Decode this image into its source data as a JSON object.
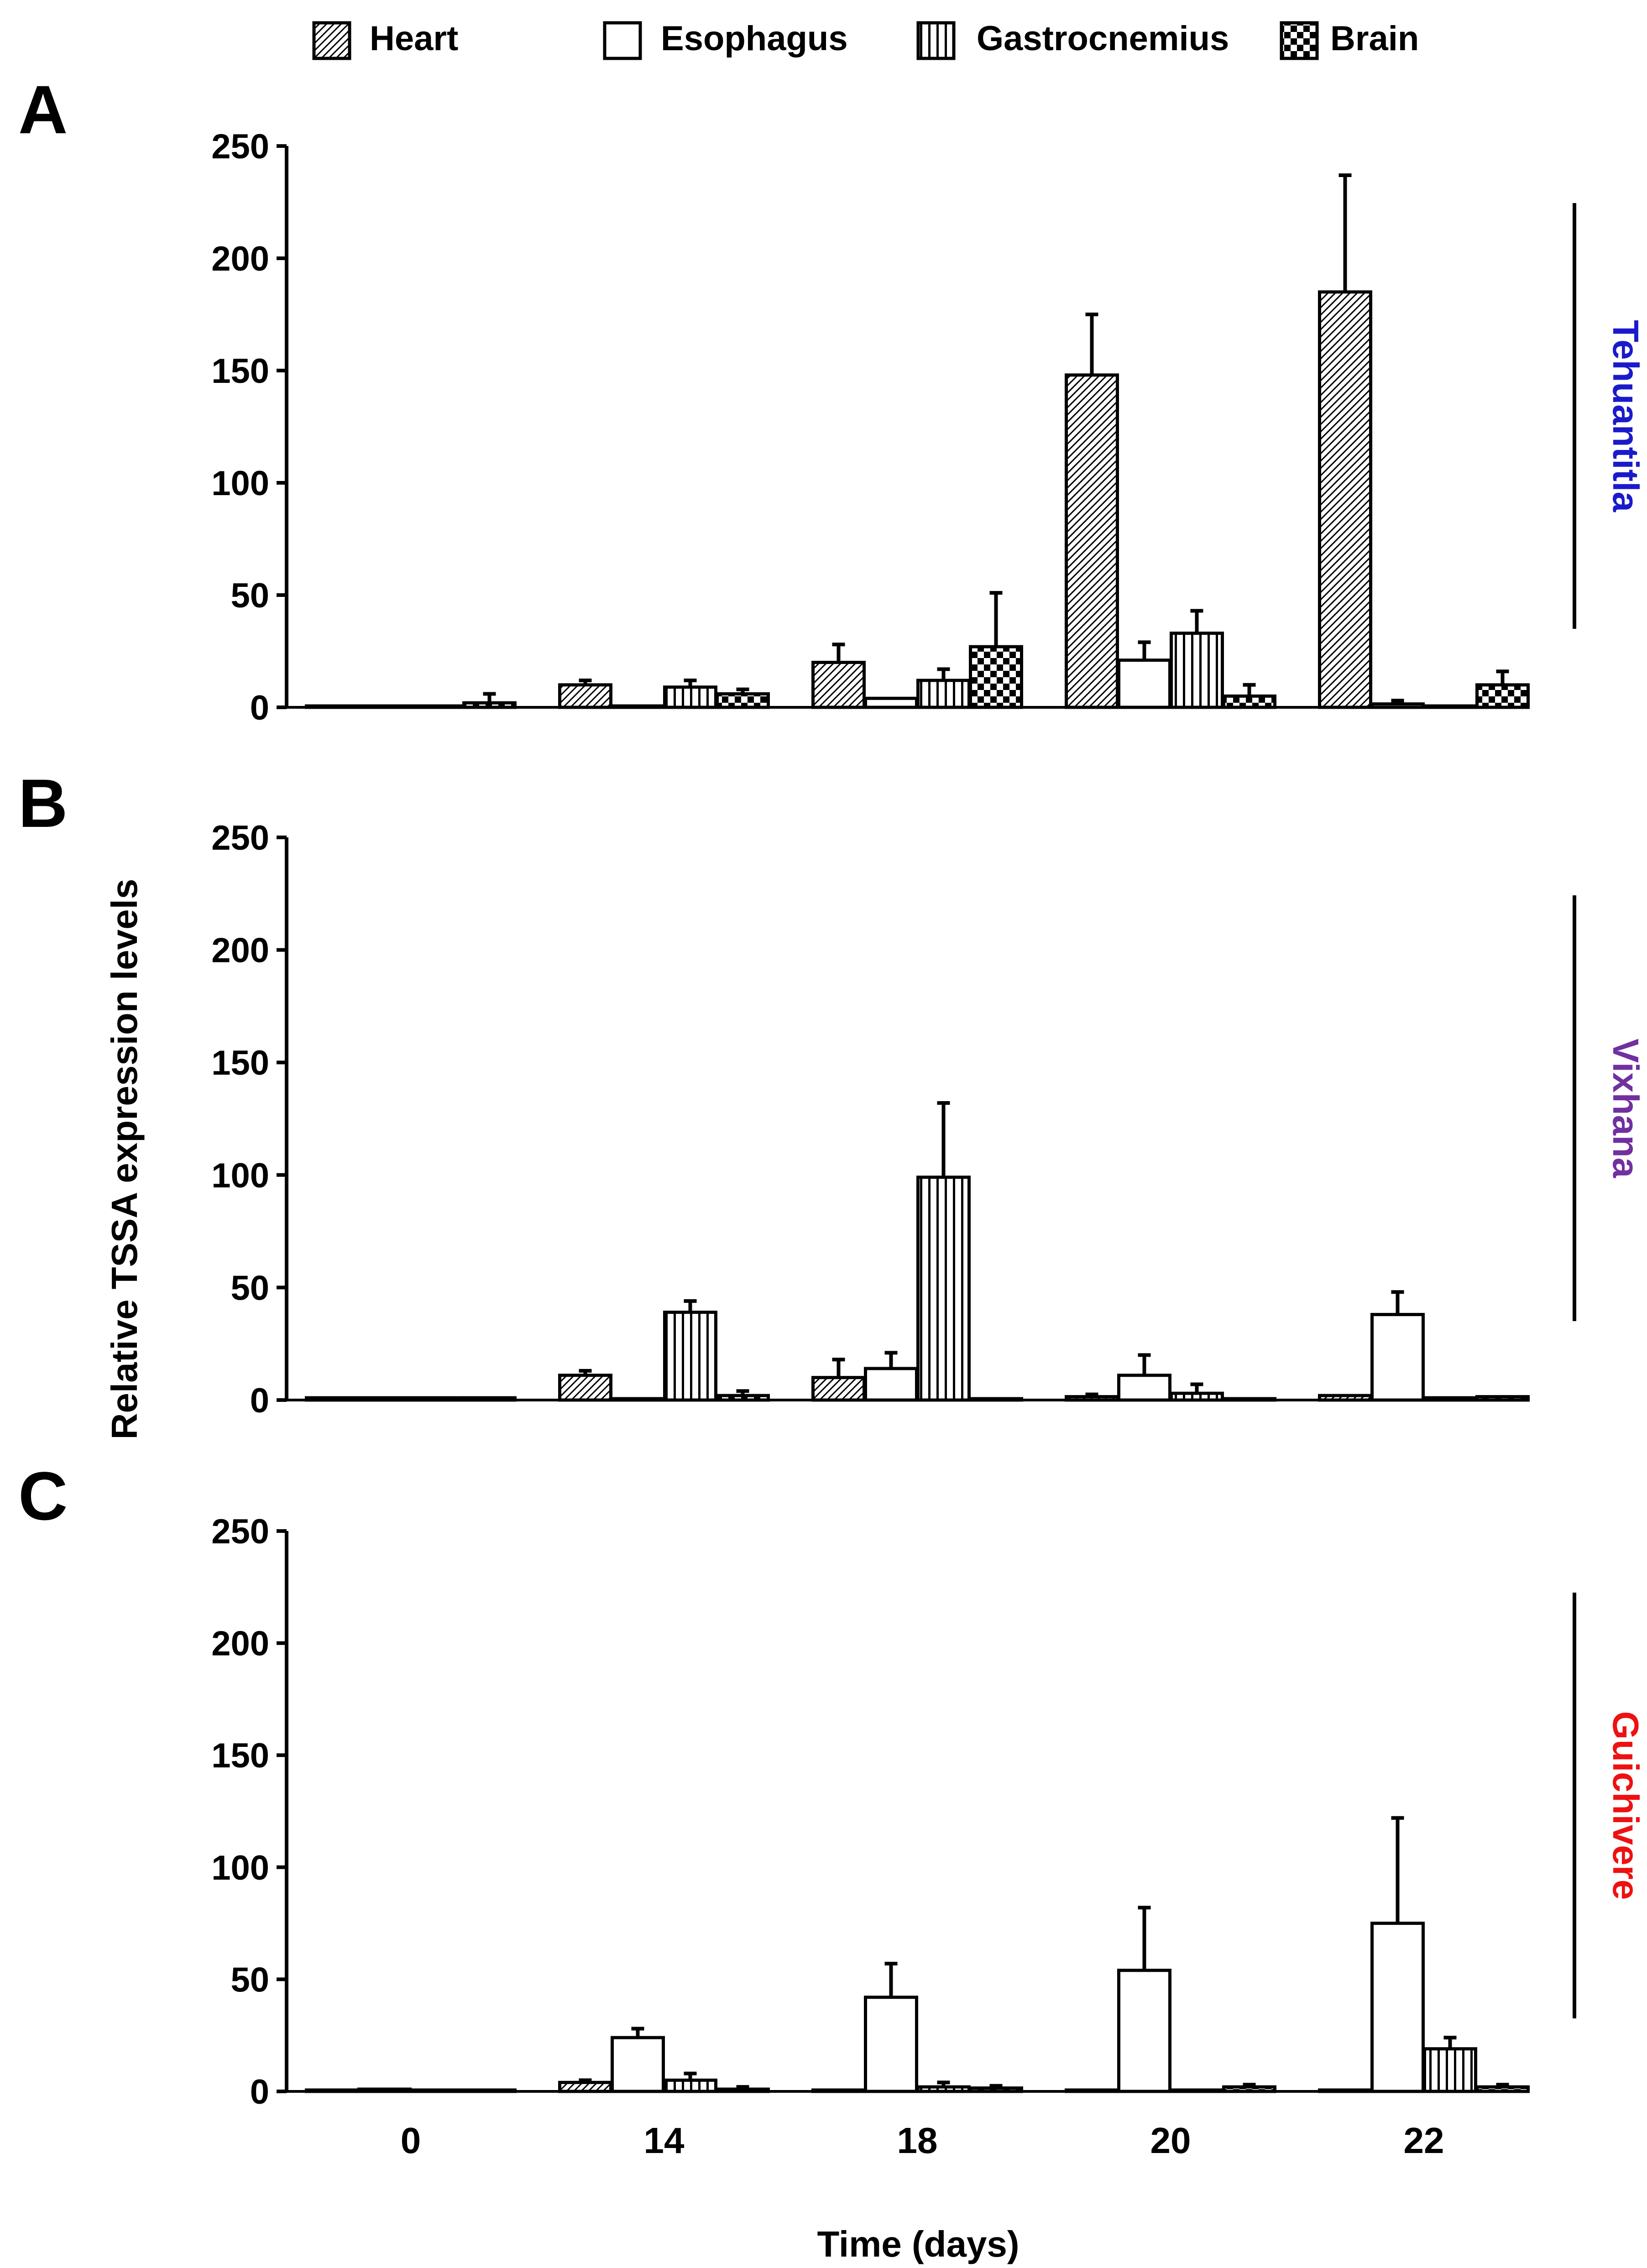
{
  "legend": [
    {
      "label": "Heart",
      "pattern": "diag"
    },
    {
      "label": "Esophagus",
      "pattern": "none"
    },
    {
      "label": "Gastrocnemius",
      "pattern": "vert"
    },
    {
      "label": "Brain",
      "pattern": "check"
    }
  ],
  "ylabel": "Relative TSSA expression levels",
  "xlabel": "Time (days)",
  "colors": {
    "tehuantitla": "#1a1acc",
    "vixhana": "#7030a0",
    "guichivere": "#ee1111",
    "ink": "#000000"
  },
  "chart_data": [
    {
      "type": "bar",
      "panel": "A",
      "group_label": "Tehuantitla",
      "label_color": "#1a1acc",
      "categories": [
        "0",
        "14",
        "18",
        "20",
        "22"
      ],
      "ylim": [
        0,
        250
      ],
      "yticks": [
        "0",
        "50",
        "100",
        "150",
        "200",
        "250"
      ],
      "series": [
        {
          "name": "Heart",
          "values": [
            0.5,
            10,
            20,
            148,
            185
          ],
          "errors": [
            0,
            2,
            8,
            27,
            52
          ]
        },
        {
          "name": "Esophagus",
          "values": [
            0.5,
            0.5,
            4,
            21,
            1.5
          ],
          "errors": [
            0,
            0,
            0,
            8,
            1.5
          ]
        },
        {
          "name": "Gastrocnemius",
          "values": [
            0.5,
            9,
            12,
            33,
            0.5
          ],
          "errors": [
            0,
            3,
            5,
            10,
            0
          ]
        },
        {
          "name": "Brain",
          "values": [
            2,
            6,
            27,
            5,
            10
          ],
          "errors": [
            4,
            2,
            24,
            5,
            6
          ]
        }
      ]
    },
    {
      "type": "bar",
      "panel": "B",
      "group_label": "Vixhana",
      "label_color": "#7030a0",
      "categories": [
        "0",
        "14",
        "18",
        "20",
        "22"
      ],
      "ylim": [
        0,
        250
      ],
      "yticks": [
        "0",
        "50",
        "100",
        "150",
        "200",
        "250"
      ],
      "series": [
        {
          "name": "Heart",
          "values": [
            1,
            11,
            10,
            1.5,
            2
          ],
          "errors": [
            0,
            2,
            8,
            1,
            0
          ]
        },
        {
          "name": "Esophagus",
          "values": [
            1,
            0.5,
            14,
            11,
            38
          ],
          "errors": [
            0,
            0,
            7,
            9,
            10
          ]
        },
        {
          "name": "Gastrocnemius",
          "values": [
            1,
            39,
            99,
            3,
            1
          ],
          "errors": [
            0,
            5,
            33,
            4,
            0
          ]
        },
        {
          "name": "Brain",
          "values": [
            1,
            2,
            0.5,
            0.5,
            1.5
          ],
          "errors": [
            0,
            2,
            0,
            0,
            0
          ]
        }
      ]
    },
    {
      "type": "bar",
      "panel": "C",
      "group_label": "Guichivere",
      "label_color": "#ee1111",
      "categories": [
        "0",
        "14",
        "18",
        "20",
        "22"
      ],
      "ylim": [
        0,
        250
      ],
      "yticks": [
        "0",
        "50",
        "100",
        "150",
        "200",
        "250"
      ],
      "series": [
        {
          "name": "Heart",
          "values": [
            0.5,
            4,
            0.5,
            0.5,
            0.5
          ],
          "errors": [
            0,
            1,
            0,
            0,
            0
          ]
        },
        {
          "name": "Esophagus",
          "values": [
            1,
            24,
            42,
            54,
            75
          ],
          "errors": [
            0,
            4,
            15,
            28,
            47
          ]
        },
        {
          "name": "Gastrocnemius",
          "values": [
            0.5,
            5,
            2,
            0.5,
            19
          ],
          "errors": [
            0,
            3,
            2,
            0,
            5
          ]
        },
        {
          "name": "Brain",
          "values": [
            0.5,
            1,
            1.5,
            2,
            2
          ],
          "errors": [
            0,
            1,
            1,
            1,
            1
          ]
        }
      ]
    }
  ]
}
